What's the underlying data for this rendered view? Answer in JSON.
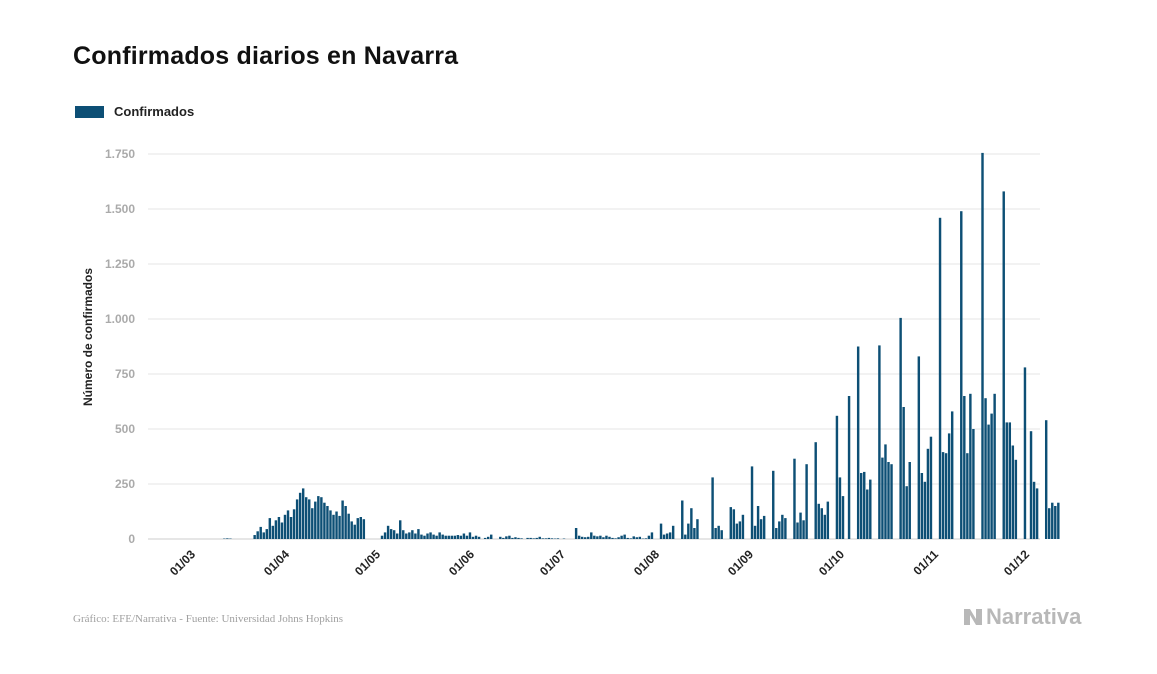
{
  "title": "Confirmados diarios en Navarra",
  "footer": {
    "source": "Gráfico: EFE/Narrativa - Fuente: Universidad Johns Hopkins",
    "brand": "Narrativa"
  },
  "colors": {
    "bar": "#0d4f75",
    "grid": "#e6e6e6",
    "tick": "#aaaaaa",
    "text": "#222222"
  },
  "chart_data": {
    "type": "bar",
    "title": "Confirmados diarios en Navarra",
    "ylabel": "Número de confirmados",
    "xlabel": "",
    "ylim": [
      0,
      1750
    ],
    "yticks": [
      0,
      250,
      500,
      750,
      1000,
      1250,
      1500,
      1750
    ],
    "ytick_labels": [
      "0",
      "250",
      "500",
      "750",
      "1.000",
      "1.250",
      "1.500",
      "1.750"
    ],
    "xticks": [
      "2020-03-01",
      "2020-04-01",
      "2020-05-01",
      "2020-06-01",
      "2020-07-01",
      "2020-08-01",
      "2020-09-01",
      "2020-10-01",
      "2020-11-01",
      "2020-12-01"
    ],
    "xtick_labels": [
      "01/03",
      "01/04",
      "01/05",
      "01/06",
      "01/07",
      "01/08",
      "01/09",
      "01/10",
      "01/11",
      "01/12"
    ],
    "x_start": "2020-03-01",
    "grid": true,
    "legend_position": "top-left",
    "series": [
      {
        "name": "Confirmados",
        "values": [
          0,
          0,
          0,
          0,
          0,
          0,
          0,
          0,
          0,
          0,
          2,
          3,
          2,
          0,
          0,
          0,
          0,
          0,
          0,
          0,
          18,
          35,
          55,
          30,
          45,
          95,
          60,
          85,
          100,
          75,
          110,
          130,
          100,
          135,
          180,
          210,
          230,
          190,
          180,
          140,
          170,
          195,
          190,
          165,
          150,
          130,
          110,
          125,
          105,
          175,
          150,
          115,
          80,
          65,
          95,
          100,
          90,
          0,
          0,
          0,
          0,
          0,
          15,
          30,
          60,
          45,
          40,
          25,
          85,
          40,
          25,
          30,
          40,
          25,
          45,
          20,
          15,
          25,
          30,
          20,
          15,
          30,
          20,
          15,
          15,
          15,
          15,
          18,
          15,
          25,
          15,
          30,
          10,
          15,
          10,
          0,
          5,
          10,
          20,
          0,
          0,
          10,
          5,
          12,
          15,
          5,
          8,
          5,
          3,
          0,
          5,
          5,
          3,
          5,
          10,
          3,
          3,
          5,
          3,
          2,
          3,
          0,
          2,
          0,
          0,
          0,
          50,
          15,
          10,
          8,
          10,
          30,
          15,
          12,
          15,
          8,
          15,
          10,
          5,
          3,
          8,
          15,
          20,
          5,
          3,
          12,
          8,
          10,
          2,
          3,
          15,
          30,
          0,
          0,
          70,
          20,
          25,
          30,
          60,
          0,
          0,
          175,
          20,
          70,
          140,
          50,
          90,
          0,
          0,
          0,
          0,
          280,
          50,
          60,
          40,
          0,
          0,
          145,
          135,
          70,
          80,
          110,
          0,
          0,
          330,
          60,
          150,
          90,
          105,
          0,
          0,
          310,
          50,
          80,
          110,
          95,
          0,
          0,
          365,
          75,
          120,
          85,
          340,
          0,
          0,
          440,
          160,
          140,
          110,
          170,
          0,
          0,
          560,
          280,
          195,
          0,
          650,
          0,
          0,
          875,
          300,
          305,
          225,
          270,
          0,
          0,
          880,
          370,
          430,
          350,
          340,
          0,
          0,
          1005,
          600,
          240,
          350,
          0,
          0,
          830,
          300,
          260,
          410,
          465,
          0,
          0,
          1460,
          395,
          390,
          480,
          580,
          0,
          0,
          1490,
          650,
          390,
          660,
          500,
          0,
          0,
          1755,
          640,
          520,
          570,
          660,
          0,
          0,
          1580,
          530,
          530,
          425,
          360,
          0,
          0,
          780,
          0,
          490,
          260,
          230,
          0,
          0,
          540,
          140,
          165,
          150,
          165
        ]
      }
    ]
  }
}
